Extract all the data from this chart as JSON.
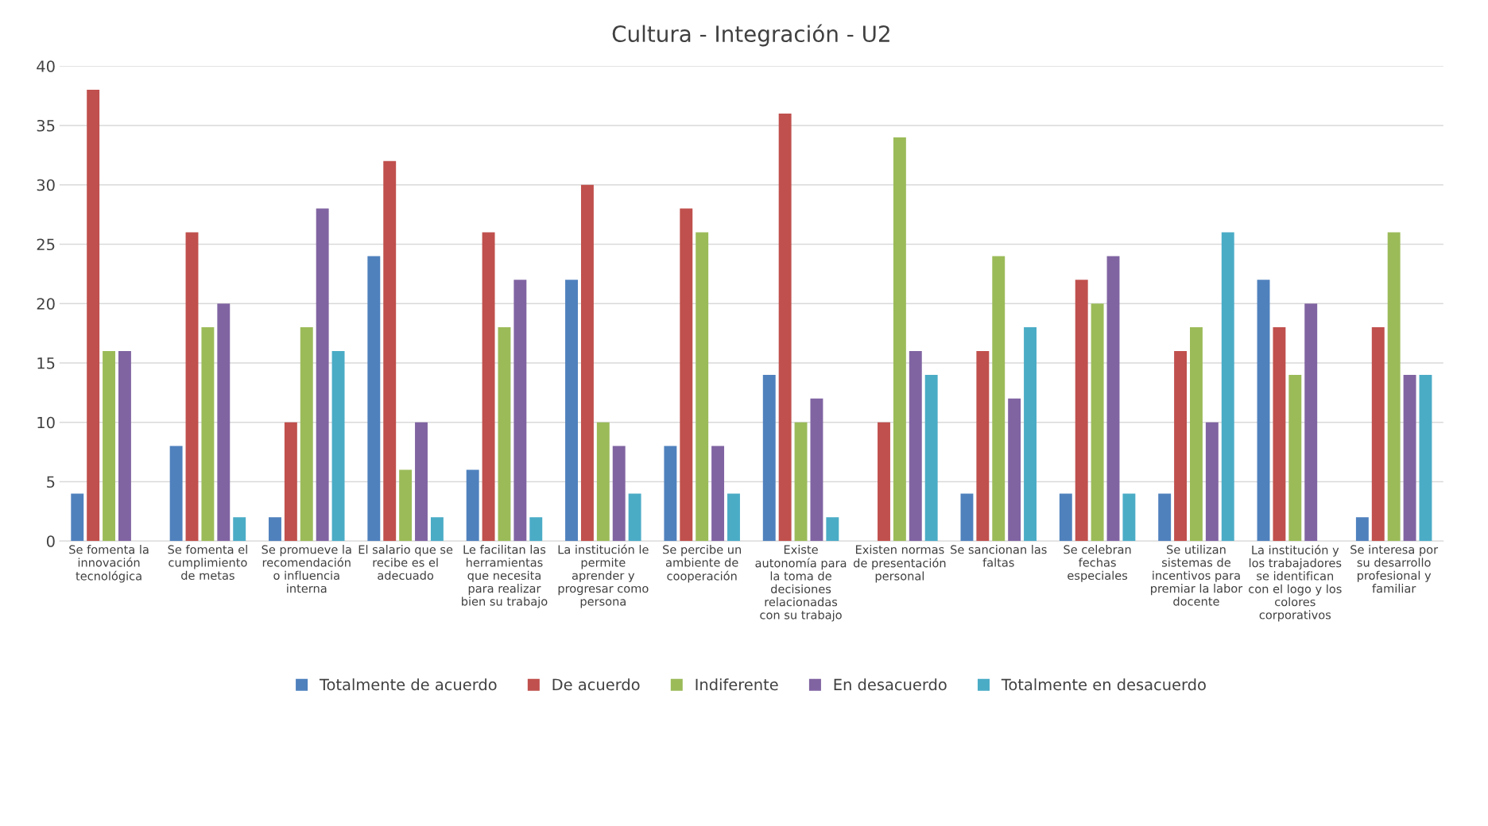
{
  "chart_data": {
    "type": "bar",
    "title": "Cultura - Integración - U2",
    "categories": [
      "Se fomenta la\ninnovación\ntecnológica",
      "Se fomenta el\ncumplimiento\nde metas",
      "Se promueve la\nrecomendación\no influencia\ninterna",
      "El salario que se\nrecibe es el\nadecuado",
      "Le facilitan las\nherramientas\nque necesita\npara realizar\nbien su trabajo",
      "La institución le\npermite\naprender y\nprogresar como\npersona",
      "Se percibe un\nambiente de\ncooperación",
      "Existe\nautonomía para\nla toma de\ndecisiones\nrelacionadas\ncon su trabajo",
      "Existen normas\nde presentación\npersonal",
      "Se sancionan las\nfaltas",
      "Se celebran\nfechas\nespeciales",
      "Se utilizan\nsistemas de\nincentivos para\npremiar la labor\ndocente",
      "La institución y\nlos trabajadores\nse identifican\ncon el logo y los\ncolores\ncorporativos",
      "Se interesa por\nsu desarrollo\nprofesional y\nfamiliar"
    ],
    "series": [
      {
        "name": "Totalmente de acuerdo",
        "color": "#4f81bd",
        "values": [
          4,
          8,
          2,
          24,
          6,
          22,
          8,
          14,
          0,
          4,
          4,
          4,
          22,
          2
        ]
      },
      {
        "name": "De acuerdo",
        "color": "#c0504d",
        "values": [
          38,
          26,
          10,
          32,
          26,
          30,
          28,
          36,
          10,
          16,
          22,
          16,
          18,
          18
        ]
      },
      {
        "name": "Indiferente",
        "color": "#9bbb59",
        "values": [
          16,
          18,
          18,
          6,
          18,
          10,
          26,
          10,
          34,
          24,
          20,
          18,
          14,
          26
        ]
      },
      {
        "name": "En desacuerdo",
        "color": "#8064a2",
        "values": [
          16,
          20,
          28,
          10,
          22,
          8,
          8,
          12,
          16,
          12,
          24,
          10,
          20,
          14
        ]
      },
      {
        "name": "Totalmente en desacuerdo",
        "color": "#4bacc6",
        "values": [
          0,
          2,
          16,
          2,
          2,
          4,
          4,
          2,
          14,
          18,
          4,
          26,
          0,
          14
        ]
      }
    ],
    "ylim": [
      0,
      40
    ],
    "yticks": [
      0,
      5,
      10,
      15,
      20,
      25,
      30,
      35,
      40
    ],
    "grid": "y",
    "legend": "bottom"
  }
}
